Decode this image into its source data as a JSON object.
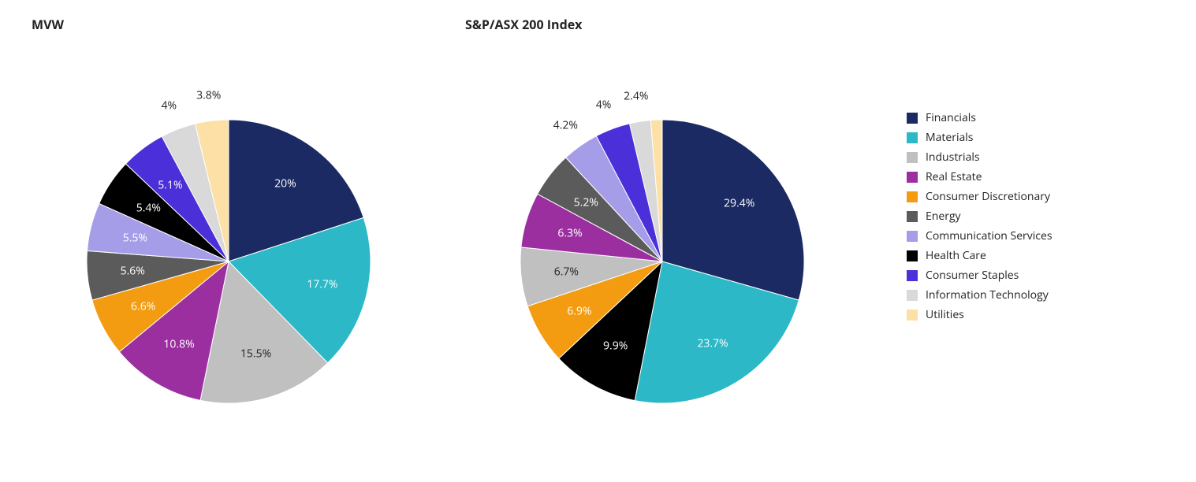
{
  "background_color": "#ffffff",
  "text_color": "#222222",
  "title_fontsize": 16,
  "label_fontsize": 14,
  "legend_fontsize": 14,
  "pie": {
    "radius": 180,
    "svg_size": 520,
    "start_angle_deg": -90,
    "label_offset_inner": 0.68,
    "label_offset_outer": 1.18,
    "label_outer_threshold_pct": 5.0,
    "label_color_inner_light": "#ffffff",
    "label_color_inner_dark": "#222222",
    "label_color_outer": "#222222",
    "light_fill_colors": [
      "#c0c0c0",
      "#fde0a6"
    ]
  },
  "categories": [
    {
      "name": "Financials",
      "color": "#1b2a63"
    },
    {
      "name": "Materials",
      "color": "#2cb8c6"
    },
    {
      "name": "Industrials",
      "color": "#c0c0c0"
    },
    {
      "name": "Real Estate",
      "color": "#9b2fa0"
    },
    {
      "name": "Consumer Discretionary",
      "color": "#f39c12"
    },
    {
      "name": "Energy",
      "color": "#5b5b5b"
    },
    {
      "name": "Communication Services",
      "color": "#a59de8"
    },
    {
      "name": "Health Care",
      "color": "#000000"
    },
    {
      "name": "Consumer Staples",
      "color": "#4b2fd9"
    },
    {
      "name": "Information Technology",
      "color": "#d9d9d9"
    },
    {
      "name": "Utilities",
      "color": "#fde0a6"
    }
  ],
  "charts": [
    {
      "title": "MVW",
      "values": [
        20.0,
        17.7,
        15.5,
        10.8,
        6.6,
        5.6,
        5.5,
        5.4,
        5.1,
        4.0,
        3.8
      ]
    },
    {
      "title": "S&P/ASX 200 Index",
      "values": [
        29.4,
        23.7,
        6.7,
        6.3,
        6.9,
        5.2,
        4.2,
        9.9,
        4.0,
        2.4,
        1.3
      ],
      "order": [
        0,
        1,
        7,
        4,
        2,
        3,
        5,
        6,
        8,
        9,
        10
      ],
      "hide_labels": [
        10
      ]
    }
  ]
}
